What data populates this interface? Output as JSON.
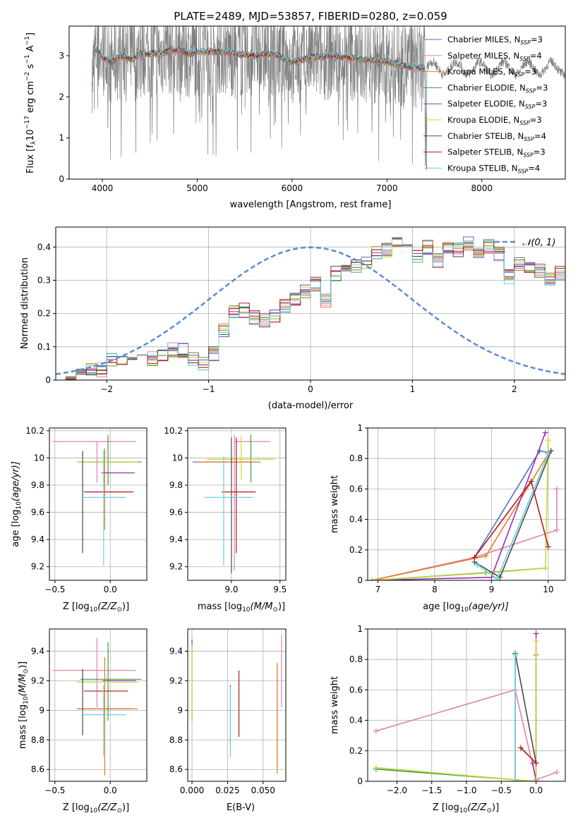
{
  "figure_title": "PLATE=2489, MJD=53857, FIBERID=0280, z=0.059",
  "colors": {
    "observed": "#808080",
    "gauss": "#5b8bd6",
    "models": [
      "#4a76c4",
      "#e67fb5",
      "#ea7a24",
      "#3f9a3f",
      "#9b2fae",
      "#c4d93a",
      "#4a4a4a",
      "#b01c1c",
      "#6fd0e0"
    ]
  },
  "legend_models": [
    {
      "base": "Chabrier MILES, N",
      "sub": "SSP",
      "tail": "=3"
    },
    {
      "base": "Salpeter MILES, N",
      "sub": "SSP",
      "tail": "=4"
    },
    {
      "base": "Kroupa MILES, N",
      "sub": "SSP",
      "tail": "=3"
    },
    {
      "base": "Chabrier ELODIE, N",
      "sub": "SSP",
      "tail": "=3"
    },
    {
      "base": "Salpeter ELODIE, N",
      "sub": "SSP",
      "tail": "=3"
    },
    {
      "base": "Kroupa ELODIE, N",
      "sub": "SSP",
      "tail": "=3"
    },
    {
      "base": "Chabrier STELIB, N",
      "sub": "SSP",
      "tail": "=4"
    },
    {
      "base": "Salpeter STELIB, N",
      "sub": "SSP",
      "tail": "=3"
    },
    {
      "base": "Kroupa STELIB, N",
      "sub": "SSP",
      "tail": "=4"
    }
  ],
  "chart_data": [
    {
      "id": "spectrum",
      "type": "line",
      "xlabel": "wavelength [Angstrom, rest frame]",
      "ylabel": {
        "a": "Flux [f",
        "b": "λ",
        "c": "10",
        "d": "−17",
        "e": " erg cm",
        "f": "−2",
        "g": " s",
        "h": "−1",
        "i": " A",
        "j": "−1",
        "k": "]"
      },
      "xlim": [
        3650,
        8880
      ],
      "ylim": [
        0,
        3.72
      ],
      "xticks": [
        4000,
        5000,
        6000,
        7000,
        8000
      ],
      "yticks": [
        0,
        1,
        2,
        3
      ],
      "observed": {
        "x_start": 3890,
        "x_end": 8880,
        "level": 2.9,
        "noise_band": 0.9,
        "coverage_gap": [
          7420,
          8880
        ]
      },
      "model_continuum": {
        "x": [
          3890,
          3920,
          3950,
          4000,
          4100,
          4200,
          4300,
          4400,
          4500,
          4600,
          4700,
          4800,
          4900,
          5000,
          5200,
          5400,
          5600,
          5800,
          6000,
          6200,
          6400,
          6600,
          6800,
          7000,
          7200,
          7400,
          7420
        ],
        "y": [
          2.35,
          3.05,
          3.2,
          2.95,
          2.85,
          3.0,
          2.9,
          3.05,
          3.05,
          3.05,
          3.1,
          3.15,
          3.05,
          3.1,
          3.1,
          3.05,
          3.0,
          3.05,
          2.85,
          2.95,
          3.0,
          2.95,
          2.9,
          2.85,
          2.75,
          2.7,
          0
        ]
      },
      "legend_position": "upper-right"
    },
    {
      "id": "residuals",
      "type": "step-histogram",
      "xlabel": "(data-model)/error",
      "ylabel": "Normed distribution",
      "xlim": [
        -2.5,
        2.5
      ],
      "ylim": [
        0,
        0.46
      ],
      "xticks": [
        -2,
        -1,
        0,
        1,
        2
      ],
      "yticks": [
        0,
        0.1,
        0.2,
        0.3,
        0.4
      ],
      "grid": true,
      "bin_width": 0.1,
      "bin_start": -2.5,
      "values": [
        0.01,
        0.02,
        0.025,
        0.03,
        0.03,
        0.06,
        0.06,
        0.065,
        0.07,
        0.065,
        0.08,
        0.09,
        0.09,
        0.06,
        0.05,
        0.08,
        0.15,
        0.21,
        0.21,
        0.19,
        0.18,
        0.19,
        0.22,
        0.24,
        0.27,
        0.29,
        0.24,
        0.32,
        0.35,
        0.34,
        0.35,
        0.38,
        0.39,
        0.41,
        0.41,
        0.37,
        0.4,
        0.36,
        0.4,
        0.39,
        0.41,
        0.38,
        0.4,
        0.38,
        0.31,
        0.35,
        0.34,
        0.33,
        0.3,
        0.32,
        0.28,
        0.27,
        0.28,
        0.25,
        0.25,
        0.26,
        0.24,
        0.21,
        0.22,
        0.2,
        0.17,
        0.18,
        0.14,
        0.14,
        0.13,
        0.13,
        0.12,
        0.11,
        0.09,
        0.08,
        0.09,
        0.08,
        0.07,
        0.07,
        0.06,
        0.05,
        0.045,
        0.04,
        0.035,
        0.03,
        0.025,
        0.02,
        0.018,
        0.016,
        0.015
      ],
      "gauss_label": "𝒩(0, 1)",
      "legend_position": "upper-right"
    },
    {
      "id": "age-vs-Z",
      "type": "errorbar",
      "xlabel": {
        "a": "Z [log",
        "b": "10",
        "c": "(Z/Z",
        "d": "⊙",
        "e": ")]"
      },
      "ylabel": {
        "a": "age  [log",
        "b": "10",
        "c": "(age/yr)]"
      },
      "xlim": [
        -0.55,
        0.33
      ],
      "ylim": [
        9.1,
        10.22
      ],
      "xticks": [
        -0.5,
        0.0
      ],
      "xtick_labels": [
        "−0.5",
        "0.0"
      ],
      "yticks": [
        9.2,
        9.4,
        9.6,
        9.8,
        10.0,
        10.2
      ],
      "grid": true,
      "points": [
        {
          "m": 0,
          "x": -0.05,
          "xerr": [
            0.25,
            0.25
          ],
          "y": 9.97,
          "yerr": [
            0.15,
            0.08
          ]
        },
        {
          "m": 1,
          "x": -0.12,
          "xerr": [
            0.4,
            0.35
          ],
          "y": 10.12,
          "yerr": [
            0.3,
            0.0
          ]
        },
        {
          "m": 2,
          "x": -0.05,
          "xerr": [
            0.25,
            0.28
          ],
          "y": 9.97,
          "yerr": [
            0.5,
            0.1
          ]
        },
        {
          "m": 3,
          "x": -0.02,
          "xerr": [
            0.25,
            0.3
          ],
          "y": 9.97,
          "yerr": [
            0.17,
            0.2
          ]
        },
        {
          "m": 4,
          "x": 0.07,
          "xerr": [
            0.15,
            0.15
          ],
          "y": 9.89,
          "yerr": [
            0.0,
            0.0
          ]
        },
        {
          "m": 5,
          "x": 0.0,
          "xerr": [
            0.3,
            0.25
          ],
          "y": 9.97,
          "yerr": [
            0.0,
            0.0
          ]
        },
        {
          "m": 6,
          "x": -0.25,
          "xerr": [
            0.0,
            0.0
          ],
          "y": 9.75,
          "yerr": [
            0.45,
            0.3
          ]
        },
        {
          "m": 7,
          "x": -0.09,
          "xerr": [
            0.15,
            0.3
          ],
          "y": 9.75,
          "yerr": [
            0.0,
            0.0
          ]
        },
        {
          "m": 8,
          "x": -0.06,
          "xerr": [
            0.2,
            0.2
          ],
          "y": 9.71,
          "yerr": [
            0.5,
            0.35
          ]
        }
      ]
    },
    {
      "id": "age-vs-mass",
      "type": "errorbar",
      "xlabel": {
        "a": "mass [log",
        "b": "10",
        "c": "(M/M",
        "d": "⊙",
        "e": ")]"
      },
      "ylabel": {
        "a": "",
        "b": "",
        "c": ""
      },
      "xlim": [
        8.55,
        9.56
      ],
      "ylim": [
        9.1,
        10.22
      ],
      "xticks": [
        9.0,
        9.5
      ],
      "xtick_labels": [
        "9.0",
        "9.5"
      ],
      "yticks": [
        9.2,
        9.4,
        9.6,
        9.8,
        10.0,
        10.2
      ],
      "grid": true,
      "points": [
        {
          "m": 0,
          "x": 8.9,
          "xerr": [
            0.3,
            0.35
          ],
          "y": 9.97,
          "yerr": [
            0.0,
            0.0
          ]
        },
        {
          "m": 1,
          "x": 9.03,
          "xerr": [
            0.0,
            0.37
          ],
          "y": 10.12,
          "yerr": [
            0.95,
            0.05
          ]
        },
        {
          "m": 2,
          "x": 8.95,
          "xerr": [
            0.3,
            0.35
          ],
          "y": 9.97,
          "yerr": [
            0.0,
            0.0
          ]
        },
        {
          "m": 3,
          "x": 9.2,
          "xerr": [
            0.0,
            0.0
          ],
          "y": 9.97,
          "yerr": [
            0.15,
            0.2
          ]
        },
        {
          "m": 4,
          "x": 9.2,
          "xerr": [
            0.0,
            0.0
          ],
          "y": 9.89,
          "yerr": [
            0.0,
            0.0
          ]
        },
        {
          "m": 5,
          "x": 9.1,
          "xerr": [
            0.35,
            0.35
          ],
          "y": 9.99,
          "yerr": [
            0.15,
            0.17
          ]
        },
        {
          "m": 6,
          "x": 9.0,
          "xerr": [
            0.0,
            0.0
          ],
          "y": 9.75,
          "yerr": [
            0.6,
            0.4
          ]
        },
        {
          "m": 7,
          "x": 9.05,
          "xerr": [
            0.15,
            0.2
          ],
          "y": 9.75,
          "yerr": [
            0.45,
            0.4
          ]
        },
        {
          "m": 8,
          "x": 8.92,
          "xerr": [
            0.2,
            0.3
          ],
          "y": 9.71,
          "yerr": [
            0.5,
            0.3
          ]
        }
      ]
    },
    {
      "id": "weight-vs-age",
      "type": "line",
      "xlabel": {
        "a": "age  [log",
        "b": "10",
        "c": "(age/yr)]"
      },
      "ylabel": "mass weight",
      "xlim": [
        6.82,
        10.3
      ],
      "ylim": [
        0,
        1.0
      ],
      "xticks": [
        7,
        8,
        9,
        10
      ],
      "yticks": [
        0,
        0.2,
        0.4,
        0.6,
        0.8,
        1.0
      ],
      "grid": true,
      "series": [
        {
          "m": 0,
          "x": [
            6.9,
            8.7,
            9.85,
            10.0
          ],
          "y": [
            0.0,
            0.15,
            0.85,
            0.84
          ]
        },
        {
          "m": 1,
          "x": [
            6.9,
            8.7,
            10.15,
            10.15
          ],
          "y": [
            0.0,
            0.15,
            0.33,
            0.6
          ]
        },
        {
          "m": 2,
          "x": [
            6.9,
            8.9,
            10.0
          ],
          "y": [
            0.0,
            0.16,
            0.83
          ]
        },
        {
          "m": 3,
          "x": [
            6.9,
            8.9,
            9.95
          ],
          "y": [
            0.0,
            0.05,
            0.08
          ]
        },
        {
          "m": 4,
          "x": [
            6.9,
            9.0,
            9.95
          ],
          "y": [
            0.0,
            0.02,
            0.97
          ]
        },
        {
          "m": 5,
          "x": [
            6.9,
            9.0,
            9.95,
            10.0
          ],
          "y": [
            0.0,
            0.05,
            0.08,
            0.92
          ]
        },
        {
          "m": 6,
          "x": [
            8.7,
            9.15,
            10.05
          ],
          "y": [
            0.12,
            0.02,
            0.85
          ]
        },
        {
          "m": 7,
          "x": [
            8.7,
            9.7,
            10.0
          ],
          "y": [
            0.15,
            0.65,
            0.22
          ]
        },
        {
          "m": 8,
          "x": [
            8.75,
            9.1,
            10.0
          ],
          "y": [
            0.1,
            0.01,
            0.83
          ]
        }
      ]
    },
    {
      "id": "mass-vs-Z",
      "type": "errorbar",
      "xlabel": {
        "a": "Z [log",
        "b": "10",
        "c": "(Z/Z",
        "d": "⊙",
        "e": ")]"
      },
      "ylabel": {
        "a": "mass [log",
        "b": "10",
        "c": "(M/M",
        "d": "⊙",
        "e": ")]"
      },
      "xlim": [
        -0.55,
        0.33
      ],
      "ylim": [
        8.52,
        9.55
      ],
      "xticks": [
        -0.5,
        0.0
      ],
      "xtick_labels": [
        "−0.5",
        "0.0"
      ],
      "yticks": [
        8.6,
        8.8,
        9.0,
        9.2,
        9.4
      ],
      "grid": true,
      "points": [
        {
          "m": 0,
          "x": -0.05,
          "xerr": [
            0.25,
            0.25
          ],
          "y": 9.01,
          "yerr": [
            0.1,
            0.1
          ]
        },
        {
          "m": 1,
          "x": -0.12,
          "xerr": [
            0.4,
            0.35
          ],
          "y": 9.27,
          "yerr": [
            0.25,
            0.22
          ]
        },
        {
          "m": 2,
          "x": -0.05,
          "xerr": [
            0.25,
            0.3
          ],
          "y": 9.01,
          "yerr": [
            0.45,
            0.35
          ]
        },
        {
          "m": 3,
          "x": -0.02,
          "xerr": [
            0.25,
            0.3
          ],
          "y": 9.21,
          "yerr": [
            0.28,
            0.25
          ]
        },
        {
          "m": 4,
          "x": 0.08,
          "xerr": [
            0.15,
            0.15
          ],
          "y": 9.2,
          "yerr": [
            0.0,
            0.0
          ]
        },
        {
          "m": 5,
          "x": 0.0,
          "xerr": [
            0.3,
            0.25
          ],
          "y": 9.19,
          "yerr": [
            0.0,
            0.0
          ]
        },
        {
          "m": 6,
          "x": -0.25,
          "xerr": [
            0.0,
            0.0
          ],
          "y": 9.13,
          "yerr": [
            0.3,
            0.15
          ]
        },
        {
          "m": 7,
          "x": -0.09,
          "xerr": [
            0.15,
            0.25
          ],
          "y": 9.13,
          "yerr": [
            0.0,
            0.0
          ]
        },
        {
          "m": 8,
          "x": -0.06,
          "xerr": [
            0.2,
            0.2
          ],
          "y": 8.97,
          "yerr": [
            0.28,
            0.2
          ]
        }
      ]
    },
    {
      "id": "mass-vs-ebv",
      "type": "errorbar",
      "xlabel": {
        "a": "E(B-V)",
        "b": "",
        "c": "",
        "d": "",
        "e": ""
      },
      "ylabel": {
        "a": "",
        "b": "",
        "c": "",
        "d": "",
        "e": ""
      },
      "xlim": [
        -0.003,
        0.066
      ],
      "ylim": [
        8.52,
        9.55
      ],
      "xticks": [
        0.0,
        0.025,
        0.05
      ],
      "xtick_labels": [
        "0.000",
        "0.025",
        "0.050"
      ],
      "yticks": [
        8.6,
        8.8,
        9.0,
        9.2,
        9.4
      ],
      "grid": true,
      "points": [
        {
          "m": 0,
          "x": 0.06,
          "xerr": [
            0,
            0
          ],
          "y": 9.02,
          "yerr": [
            0.42,
            0.3
          ]
        },
        {
          "m": 1,
          "x": 0.063,
          "xerr": [
            0,
            0
          ],
          "y": 9.27,
          "yerr": [
            0.25,
            0.24
          ]
        },
        {
          "m": 2,
          "x": 0.06,
          "xerr": [
            0,
            0
          ],
          "y": 9.02,
          "yerr": [
            0.45,
            0.3
          ]
        },
        {
          "m": 3,
          "x": 0.0,
          "xerr": [
            0,
            0
          ],
          "y": 9.21,
          "yerr": [
            0.28,
            0.25
          ]
        },
        {
          "m": 4,
          "x": 0.0,
          "xerr": [
            0,
            0
          ],
          "y": 9.45,
          "yerr": [
            0.0,
            0.03
          ]
        },
        {
          "m": 5,
          "x": 0.0,
          "xerr": [
            0,
            0
          ],
          "y": 9.19,
          "yerr": [
            0.25,
            0.25
          ]
        },
        {
          "m": 6,
          "x": 0.027,
          "xerr": [
            0,
            0
          ],
          "y": 8.97,
          "yerr": [
            0.2,
            0.2
          ]
        },
        {
          "m": 7,
          "x": 0.033,
          "xerr": [
            0,
            0
          ],
          "y": 9.05,
          "yerr": [
            0.23,
            0.22
          ]
        },
        {
          "m": 8,
          "x": 0.027,
          "xerr": [
            0,
            0
          ],
          "y": 8.96,
          "yerr": [
            0.28,
            0.2
          ]
        }
      ]
    },
    {
      "id": "weight-vs-Z",
      "type": "line",
      "xlabel": {
        "a": "Z [log",
        "b": "10",
        "c": "(Z/Z",
        "d": "⊙",
        "e": ")]"
      },
      "ylabel": "mass weight",
      "xlim": [
        -2.42,
        0.42
      ],
      "ylim": [
        0,
        1.0
      ],
      "xticks": [
        -2.0,
        -1.5,
        -1.0,
        -0.5,
        0.0
      ],
      "xtick_labels": [
        "−2.0",
        "−1.5",
        "−1.0",
        "−0.5",
        "0.0"
      ],
      "yticks": [
        0,
        0.2,
        0.4,
        0.6,
        0.8,
        1.0
      ],
      "grid": true,
      "series": [
        {
          "m": 0,
          "x": [
            -0.3,
            -0.3,
            0.0
          ],
          "y": [
            0.84,
            0.0,
            0.0
          ]
        },
        {
          "m": 1,
          "x": [
            -2.3,
            -0.3,
            0.0,
            0.3
          ],
          "y": [
            0.33,
            0.6,
            0.01,
            0.06
          ]
        },
        {
          "m": 2,
          "x": [
            -0.3,
            0.0,
            0.0
          ],
          "y": [
            0.0,
            0.0,
            0.83
          ]
        },
        {
          "m": 3,
          "x": [
            -2.3,
            -0.3,
            0.0
          ],
          "y": [
            0.08,
            0.01,
            0.0
          ]
        },
        {
          "m": 4,
          "x": [
            -0.05,
            0.0,
            0.0
          ],
          "y": [
            0.12,
            0.0,
            0.97
          ]
        },
        {
          "m": 5,
          "x": [
            -2.3,
            -0.3,
            0.0,
            0.0
          ],
          "y": [
            0.09,
            0.01,
            0.0,
            0.92
          ]
        },
        {
          "m": 6,
          "x": [
            -0.3,
            0.0
          ],
          "y": [
            0.84,
            0.12
          ]
        },
        {
          "m": 7,
          "x": [
            -0.22,
            0.0
          ],
          "y": [
            0.22,
            0.12
          ]
        },
        {
          "m": 8,
          "x": [
            -0.3,
            -0.3
          ],
          "y": [
            0.0,
            0.83
          ]
        }
      ]
    }
  ]
}
